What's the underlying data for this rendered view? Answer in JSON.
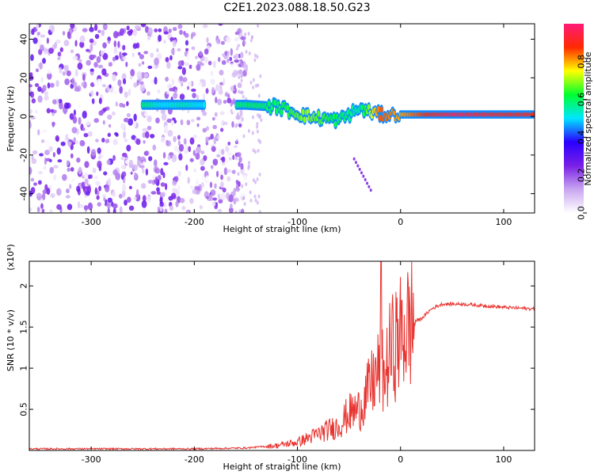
{
  "title": "C2E1.2023.088.18.50.G23",
  "chart_data": [
    {
      "type": "heatmap",
      "xlabel": "Height of straight line (km)",
      "ylabel": "Frequency (Hz)",
      "xlim": [
        -360,
        130
      ],
      "ylim": [
        -50,
        48
      ],
      "xticks": [
        -300,
        -200,
        -100,
        0,
        100
      ],
      "yticks": [
        -40,
        -20,
        0,
        20,
        40
      ],
      "colorbar": {
        "label": "Normalized spectral amplitude",
        "range": [
          0.0,
          1.0
        ],
        "ticks": [
          "0.0",
          "0.2",
          "0.4",
          "0.6",
          "0.8"
        ],
        "colormap": [
          "#ffffff",
          "#c9a6f0",
          "#7a1fe6",
          "#2a00ff",
          "#00e6ff",
          "#00ff30",
          "#ffff00",
          "#ff2a00",
          "#ff1a78"
        ]
      },
      "noise_region": {
        "x": [
          -360,
          -150
        ],
        "amplitude": 0.3
      },
      "signal_band": [
        {
          "x": -250,
          "y": 6,
          "amplitude": 0.6
        },
        {
          "x": -230,
          "y": 6,
          "amplitude": 0.5
        },
        {
          "x": -210,
          "y": 6,
          "amplitude": 0.55
        },
        {
          "x": -195,
          "y": 6,
          "amplitude": 0.5
        },
        {
          "x": -150,
          "y": 6,
          "amplitude": 0.6
        },
        {
          "x": -120,
          "y": 5,
          "amplitude": 0.6
        },
        {
          "x": -90,
          "y": 0,
          "amplitude": 0.7
        },
        {
          "x": -60,
          "y": -2,
          "amplitude": 0.6
        },
        {
          "x": -40,
          "y": 4,
          "amplitude": 0.55
        },
        {
          "x": -20,
          "y": 1,
          "amplitude": 0.85
        },
        {
          "x": 0,
          "y": 1,
          "amplitude": 0.8
        },
        {
          "x": 50,
          "y": 1,
          "amplitude": 0.95
        },
        {
          "x": 100,
          "y": 1,
          "amplitude": 0.9
        },
        {
          "x": 130,
          "y": 1,
          "amplitude": 0.9
        }
      ]
    },
    {
      "type": "line",
      "xlabel": "Height of straight line (km)",
      "ylabel": "SNR (10 * v/v)",
      "y_multiplier": "(x10⁴)",
      "xlim": [
        -360,
        130
      ],
      "ylim": [
        0,
        2.3
      ],
      "xticks": [
        -300,
        -200,
        -100,
        0,
        100
      ],
      "yticks": [
        0.5,
        1.0,
        1.5,
        2.0
      ],
      "color": "#e8332f",
      "series": [
        {
          "x": [
            -360,
            -300,
            -200,
            -150,
            -120,
            -100,
            -80,
            -60,
            -50,
            -40,
            -30,
            -20,
            -15,
            -10,
            0,
            10,
            20,
            30,
            40,
            60,
            80,
            100,
            130
          ],
          "y": [
            0.02,
            0.02,
            0.02,
            0.03,
            0.06,
            0.1,
            0.2,
            0.3,
            0.45,
            0.5,
            0.75,
            1.0,
            0.9,
            1.2,
            1.4,
            1.55,
            1.6,
            1.72,
            1.78,
            1.78,
            1.76,
            1.74,
            1.72
          ]
        }
      ]
    }
  ]
}
